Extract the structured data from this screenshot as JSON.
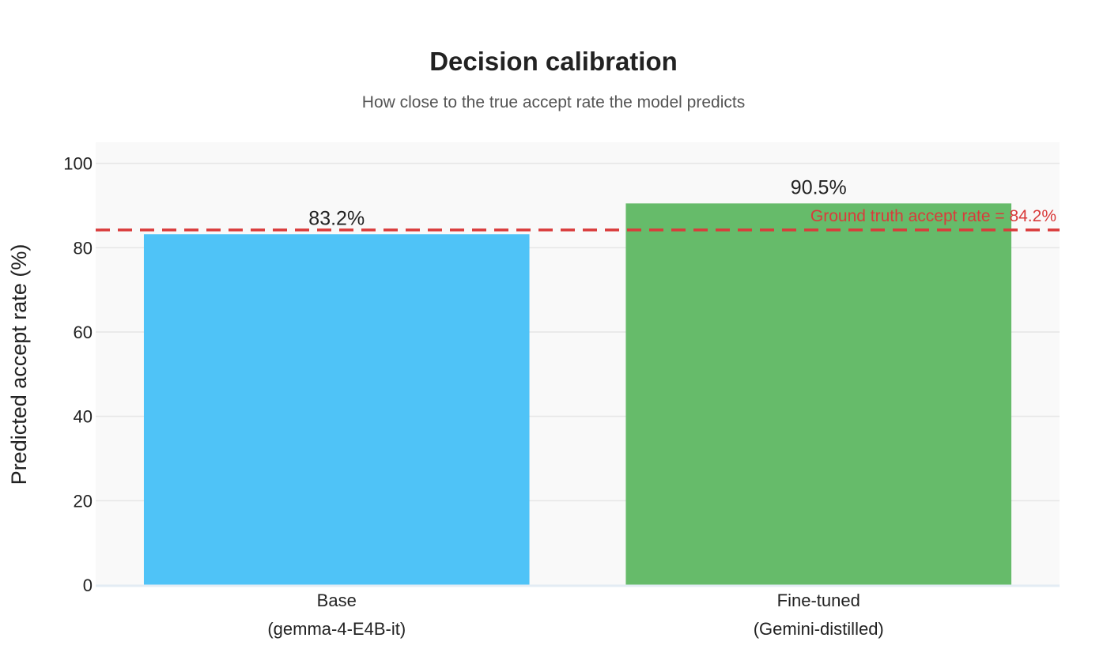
{
  "chart_data": {
    "type": "bar",
    "title": "Decision calibration",
    "subtitle": "How close to the true accept rate the model predicts",
    "ylabel": "Predicted accept rate (%)",
    "xlabel": "",
    "ylim": [
      0,
      105
    ],
    "yticks": [
      0,
      20,
      40,
      60,
      80,
      100
    ],
    "grid": true,
    "categories": [
      [
        "Base",
        "(gemma-4-E4B-it)"
      ],
      [
        "Fine-tuned",
        "(Gemini-distilled)"
      ]
    ],
    "values": [
      83.2,
      90.5
    ],
    "data_labels": [
      "83.2%",
      "90.5%"
    ],
    "bar_colors": [
      "#4fc3f7",
      "#66bb6a"
    ],
    "reference_line": {
      "value": 84.2,
      "label": "Ground truth accept rate = 84.2%",
      "color": "#d93b3b",
      "style": "dashed"
    },
    "plot_background": "#f9f9f9"
  }
}
